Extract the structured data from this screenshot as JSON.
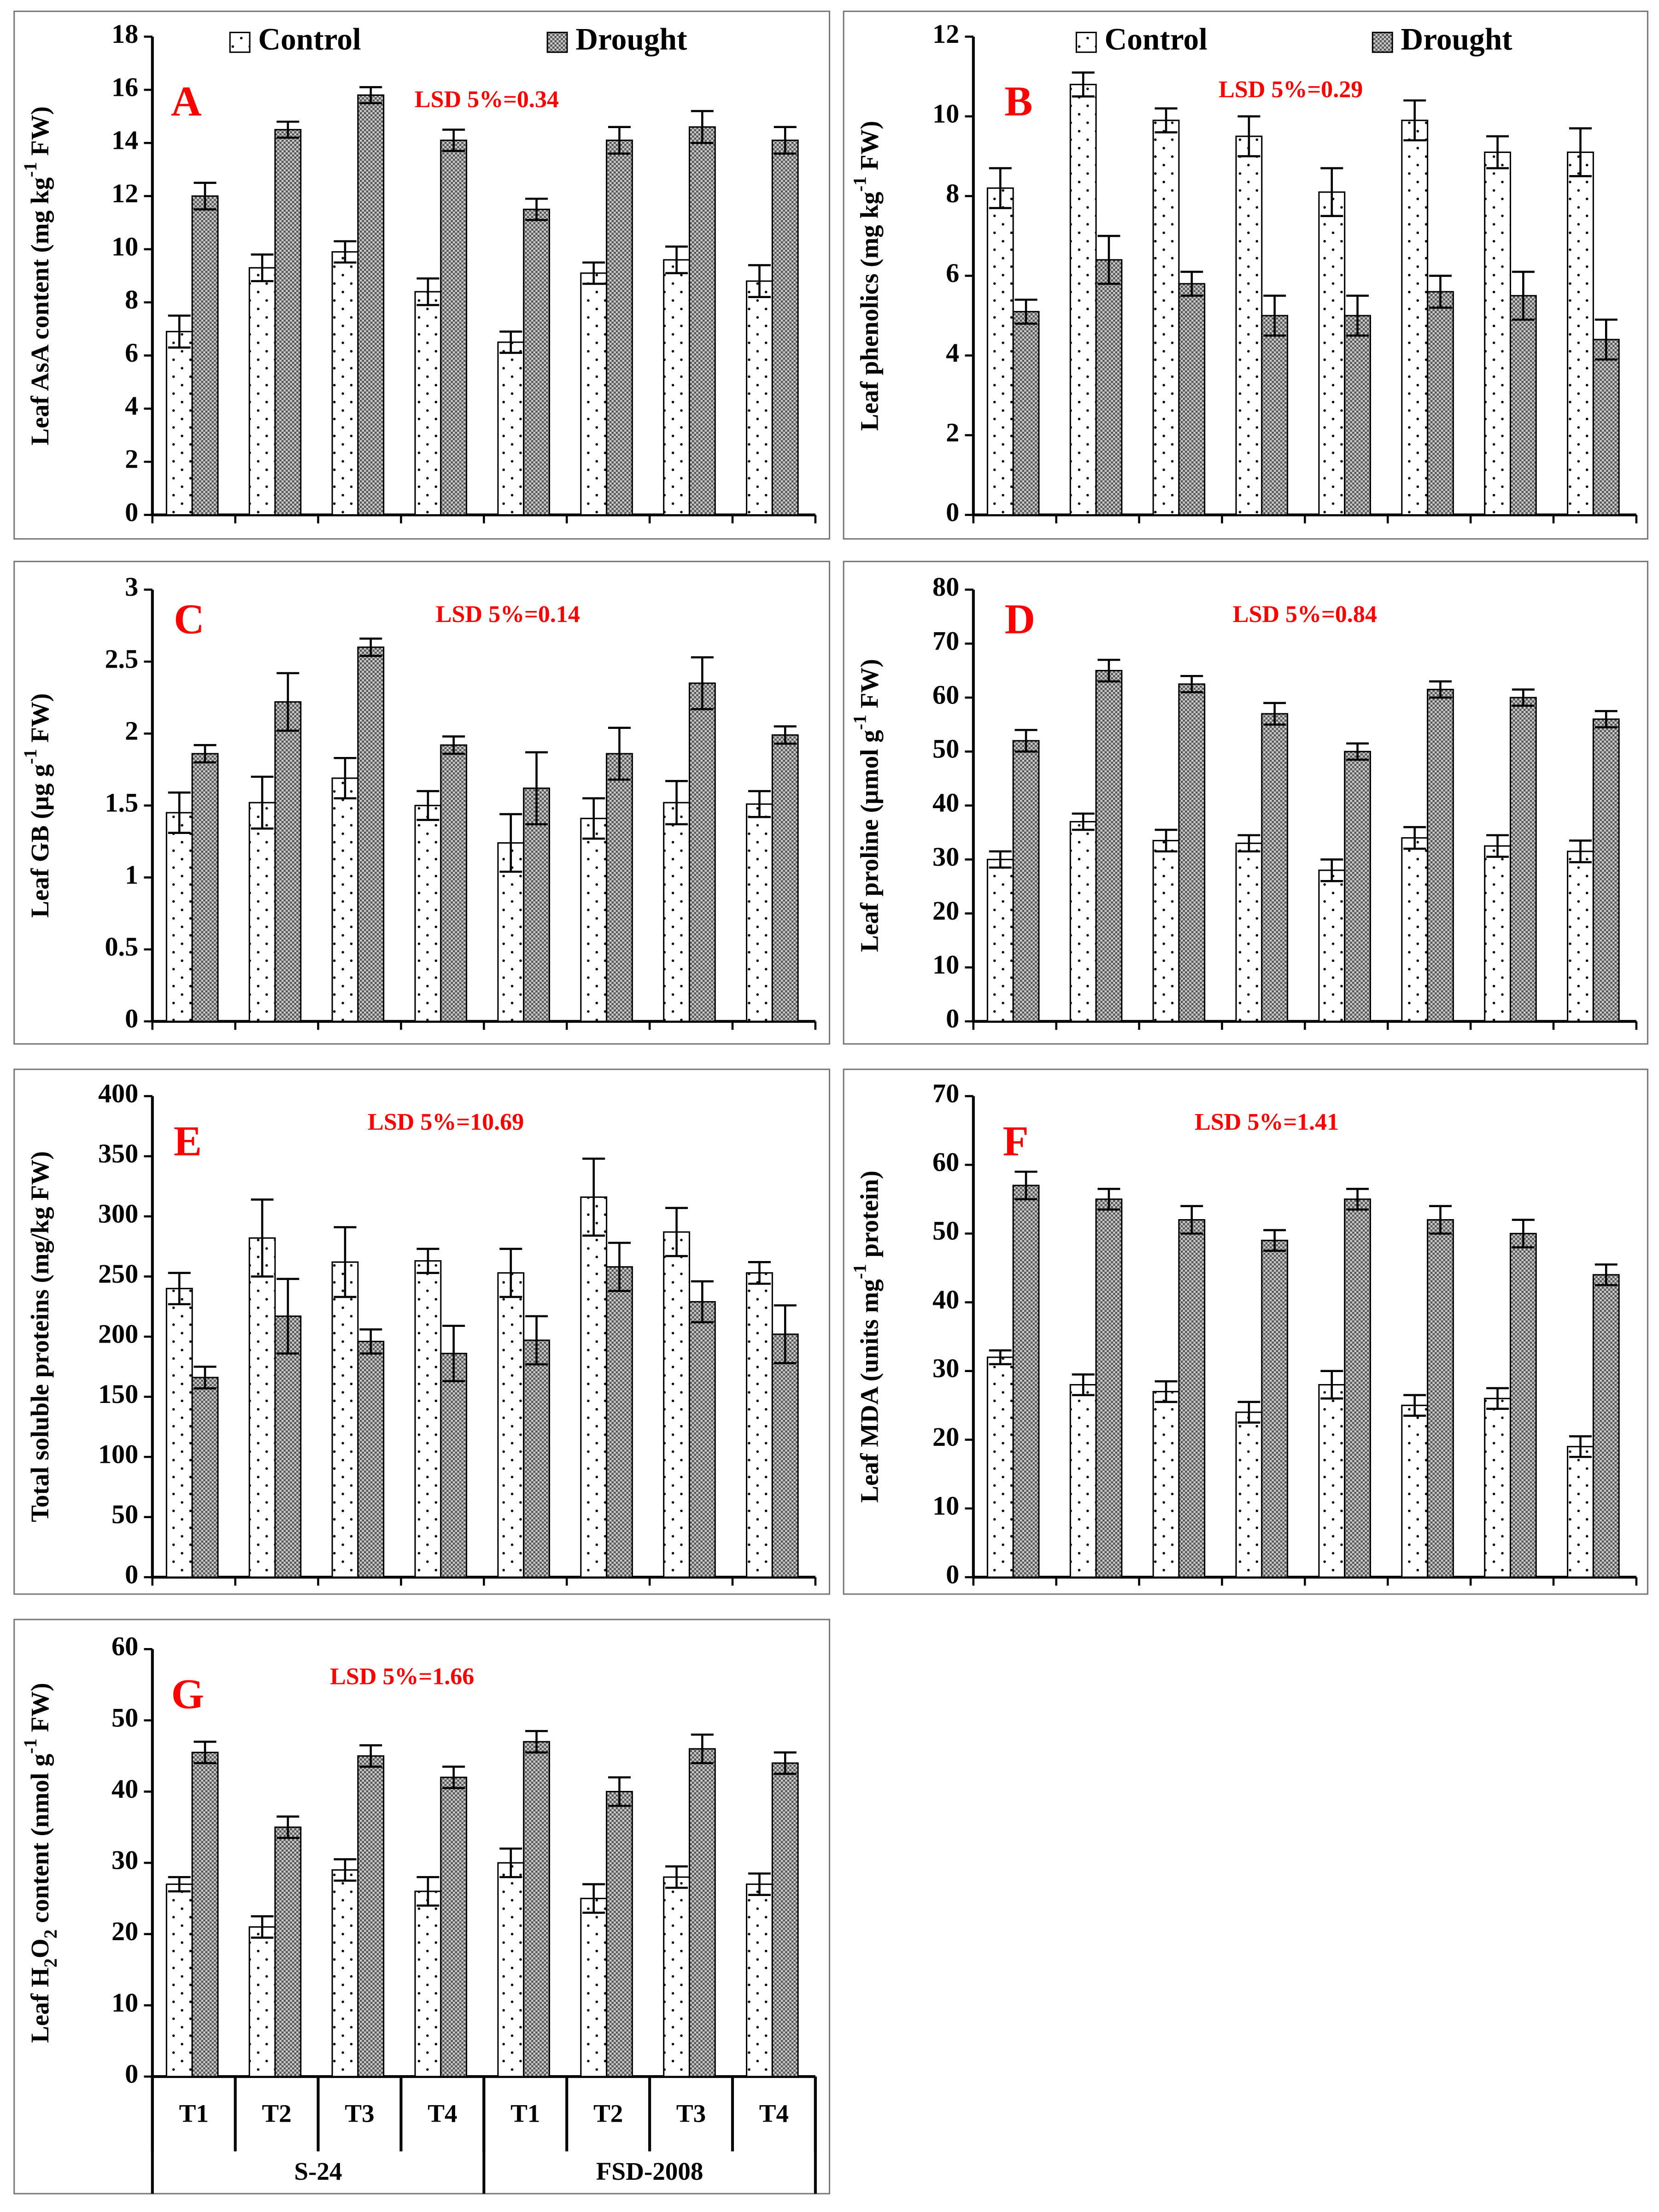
{
  "chart_data": [
    {
      "type": "bar",
      "label": "A",
      "annotation": "LSD 5%=0.34",
      "ylabel": [
        {
          "text": "Leaf AsA content (mg kg"
        },
        {
          "text": "-1",
          "shift": "super"
        },
        {
          "text": " FW)"
        }
      ],
      "ylim": [
        0,
        18
      ],
      "yticks": [
        0,
        2,
        4,
        6,
        8,
        10,
        12,
        14,
        16,
        18
      ],
      "legend": "top",
      "series": [
        {
          "name": "Control",
          "color": "#ffffff",
          "pattern": "dots",
          "values": [
            6.9,
            9.3,
            9.9,
            8.4,
            6.5,
            9.1,
            9.6,
            8.8
          ],
          "errors": [
            0.6,
            0.5,
            0.4,
            0.5,
            0.4,
            0.4,
            0.5,
            0.6
          ]
        },
        {
          "name": "Drought",
          "color": "#808080",
          "pattern": "checker",
          "values": [
            12.0,
            14.5,
            15.8,
            14.1,
            11.5,
            14.1,
            14.6,
            14.1
          ],
          "errors": [
            0.5,
            0.3,
            0.3,
            0.4,
            0.4,
            0.5,
            0.6,
            0.5
          ]
        }
      ]
    },
    {
      "type": "bar",
      "label": "B",
      "annotation": "LSD 5%=0.29",
      "ylabel": [
        {
          "text": "Leaf phenolics (mg kg"
        },
        {
          "text": "-1",
          "shift": "super"
        },
        {
          "text": " FW)"
        }
      ],
      "ylim": [
        0,
        12
      ],
      "yticks": [
        0,
        2,
        4,
        6,
        8,
        10,
        12
      ],
      "legend": "top",
      "series": [
        {
          "name": "Control",
          "color": "#ffffff",
          "pattern": "dots",
          "values": [
            8.2,
            10.8,
            9.9,
            9.5,
            8.1,
            9.9,
            9.1,
            9.1
          ],
          "errors": [
            0.5,
            0.3,
            0.3,
            0.5,
            0.6,
            0.5,
            0.4,
            0.6
          ]
        },
        {
          "name": "Drought",
          "color": "#808080",
          "pattern": "checker",
          "values": [
            5.1,
            6.4,
            5.8,
            5.0,
            5.0,
            5.6,
            5.5,
            4.4
          ],
          "errors": [
            0.3,
            0.6,
            0.3,
            0.5,
            0.5,
            0.4,
            0.6,
            0.5
          ]
        }
      ]
    },
    {
      "type": "bar",
      "label": "C",
      "annotation": "LSD 5%=0.14",
      "ylabel": [
        {
          "text": "Leaf GB (µg g"
        },
        {
          "text": "-1",
          "shift": "super"
        },
        {
          "text": " FW)"
        }
      ],
      "ylim": [
        0,
        3
      ],
      "yticks": [
        0,
        0.5,
        1,
        1.5,
        2,
        2.5,
        3
      ],
      "series": [
        {
          "color": "#ffffff",
          "pattern": "dots",
          "values": [
            1.45,
            1.52,
            1.69,
            1.5,
            1.24,
            1.41,
            1.52,
            1.51
          ],
          "errors": [
            0.14,
            0.18,
            0.14,
            0.1,
            0.2,
            0.14,
            0.15,
            0.09
          ]
        },
        {
          "color": "#808080",
          "pattern": "checker",
          "values": [
            1.86,
            2.22,
            2.6,
            1.92,
            1.62,
            1.86,
            2.35,
            1.99
          ],
          "errors": [
            0.06,
            0.2,
            0.06,
            0.06,
            0.25,
            0.18,
            0.18,
            0.06
          ]
        }
      ]
    },
    {
      "type": "bar",
      "label": "D",
      "annotation": "LSD 5%=0.84",
      "ylabel": [
        {
          "text": "Leaf proline (µmol g"
        },
        {
          "text": "-1",
          "shift": "super"
        },
        {
          "text": " FW)"
        }
      ],
      "ylim": [
        0,
        80
      ],
      "yticks": [
        0,
        10,
        20,
        30,
        40,
        50,
        60,
        70,
        80
      ],
      "series": [
        {
          "color": "#ffffff",
          "pattern": "dots",
          "values": [
            30,
            37,
            33.5,
            33,
            28,
            34,
            32.5,
            31.5
          ],
          "errors": [
            1.5,
            1.5,
            2,
            1.5,
            2,
            2,
            2,
            2
          ]
        },
        {
          "color": "#808080",
          "pattern": "checker",
          "values": [
            52,
            65,
            62.5,
            57,
            50,
            61.5,
            60,
            56
          ],
          "errors": [
            2,
            2,
            1.5,
            2,
            1.5,
            1.5,
            1.5,
            1.5
          ]
        }
      ]
    },
    {
      "type": "bar",
      "label": "E",
      "annotation": "LSD 5%=10.69",
      "ylabel": [
        {
          "text": "Total soluble proteins (mg/kg FW)"
        }
      ],
      "ylim": [
        0,
        400
      ],
      "yticks": [
        0,
        50,
        100,
        150,
        200,
        250,
        300,
        350,
        400
      ],
      "series": [
        {
          "color": "#ffffff",
          "pattern": "dots",
          "values": [
            240,
            282,
            262,
            263,
            253,
            316,
            287,
            253
          ],
          "errors": [
            13,
            32,
            29,
            10,
            20,
            32,
            20,
            9
          ]
        },
        {
          "color": "#808080",
          "pattern": "checker",
          "values": [
            166,
            217,
            196,
            186,
            197,
            258,
            229,
            202
          ],
          "errors": [
            9,
            31,
            10,
            23,
            20,
            20,
            17,
            24
          ]
        }
      ]
    },
    {
      "type": "bar",
      "label": "F",
      "annotation": "LSD 5%=1.41",
      "ylabel": [
        {
          "text": "Leaf MDA (units mg"
        },
        {
          "text": "-1",
          "shift": "super"
        },
        {
          "text": " protein)"
        }
      ],
      "ylim": [
        0,
        70
      ],
      "yticks": [
        0,
        10,
        20,
        30,
        40,
        50,
        60,
        70
      ],
      "series": [
        {
          "color": "#ffffff",
          "pattern": "dots",
          "values": [
            32,
            28,
            27,
            24,
            28,
            25,
            26,
            19
          ],
          "errors": [
            1,
            1.5,
            1.5,
            1.5,
            2,
            1.5,
            1.5,
            1.5
          ]
        },
        {
          "color": "#808080",
          "pattern": "checker",
          "values": [
            57,
            55,
            52,
            49,
            55,
            52,
            50,
            44
          ],
          "errors": [
            2,
            1.5,
            2,
            1.5,
            1.5,
            2,
            2,
            1.5
          ]
        }
      ]
    },
    {
      "type": "bar",
      "label": "G",
      "annotation": "LSD 5%=1.66",
      "ylabel": [
        {
          "text": "Leaf H"
        },
        {
          "text": "2",
          "shift": "sub"
        },
        {
          "text": "O"
        },
        {
          "text": "2",
          "shift": "sub"
        },
        {
          "text": " content (nmol g"
        },
        {
          "text": "-1",
          "shift": "super"
        },
        {
          "text": " FW)"
        }
      ],
      "ylim": [
        0,
        60
      ],
      "yticks": [
        0,
        10,
        20,
        30,
        40,
        50,
        60
      ],
      "categories": [
        "T1",
        "T2",
        "T3",
        "T4",
        "T1",
        "T2",
        "T3",
        "T4"
      ],
      "groups": [
        "S-24",
        "FSD-2008"
      ],
      "series": [
        {
          "color": "#ffffff",
          "pattern": "dots",
          "values": [
            27,
            21,
            29,
            26,
            30,
            25,
            28,
            27
          ],
          "errors": [
            1,
            1.5,
            1.5,
            2,
            2,
            2,
            1.5,
            1.5
          ]
        },
        {
          "color": "#808080",
          "pattern": "checker",
          "values": [
            45.5,
            35,
            45,
            42,
            47,
            40,
            46,
            44
          ],
          "errors": [
            1.5,
            1.5,
            1.5,
            1.5,
            1.5,
            2,
            2,
            1.5
          ]
        }
      ]
    }
  ]
}
